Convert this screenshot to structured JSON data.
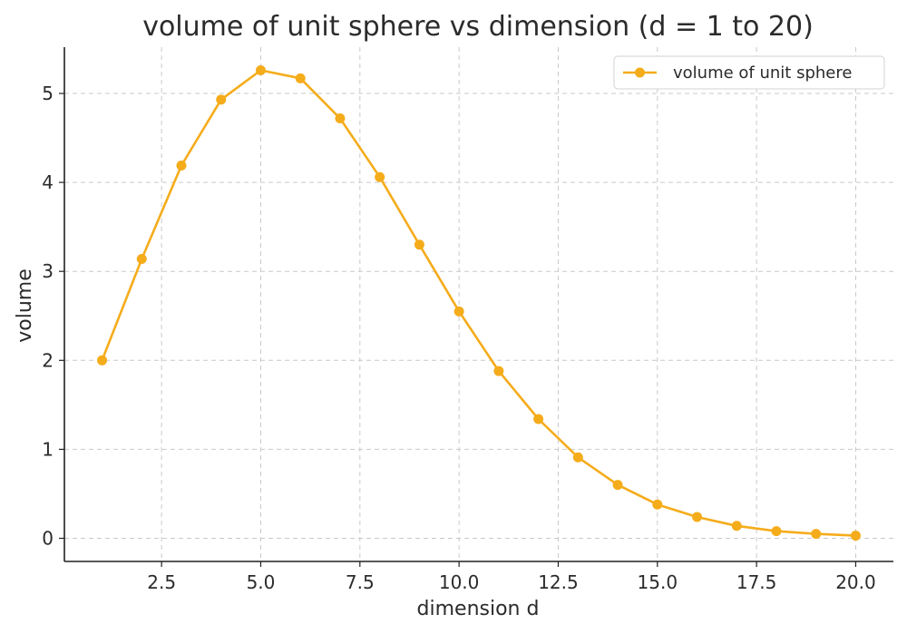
{
  "chart_data": {
    "type": "line",
    "title": "volume of unit sphere vs dimension (d = 1 to 20)",
    "xlabel": "dimension d",
    "ylabel": "volume",
    "xlim": [
      0.05,
      20.95
    ],
    "ylim": [
      -0.26,
      5.52
    ],
    "x_ticks": [
      2.5,
      5.0,
      7.5,
      10.0,
      12.5,
      15.0,
      17.5,
      20.0
    ],
    "x_tick_labels": [
      "2.5",
      "5.0",
      "7.5",
      "10.0",
      "12.5",
      "15.0",
      "17.5",
      "20.0"
    ],
    "y_ticks": [
      0,
      1,
      2,
      3,
      4,
      5
    ],
    "y_tick_labels": [
      "0",
      "1",
      "2",
      "3",
      "4",
      "5"
    ],
    "grid": true,
    "legend_position": "top-right",
    "series": [
      {
        "name": "volume of unit sphere",
        "color": "#f5ac1b",
        "marker": "circle",
        "x": [
          1,
          2,
          3,
          4,
          5,
          6,
          7,
          8,
          9,
          10,
          11,
          12,
          13,
          14,
          15,
          16,
          17,
          18,
          19,
          20
        ],
        "values": [
          2.0,
          3.14,
          4.19,
          4.93,
          5.26,
          5.17,
          4.72,
          4.06,
          3.3,
          2.55,
          1.88,
          1.34,
          0.91,
          0.6,
          0.38,
          0.24,
          0.14,
          0.08,
          0.05,
          0.03
        ]
      }
    ]
  }
}
